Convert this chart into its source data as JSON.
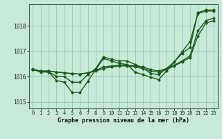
{
  "title": "Graphe pression niveau de la mer (hPa)",
  "background_color": "#c8e8d8",
  "grid_color": "#98c8b0",
  "line_color": "#1a5c1a",
  "marker_color": "#1a5c1a",
  "xlim": [
    -0.5,
    23.5
  ],
  "ylim": [
    1014.75,
    1018.85
  ],
  "yticks": [
    1015,
    1016,
    1017,
    1018
  ],
  "xticks": [
    0,
    1,
    2,
    3,
    4,
    5,
    6,
    7,
    8,
    9,
    10,
    11,
    12,
    13,
    14,
    15,
    16,
    17,
    18,
    19,
    20,
    21,
    22,
    23
  ],
  "series": [
    [
      1016.3,
      1016.2,
      1016.2,
      1015.85,
      1015.78,
      1015.38,
      1015.38,
      1015.82,
      1016.28,
      1016.72,
      1016.62,
      1016.52,
      1016.48,
      1016.18,
      1016.08,
      1015.98,
      1015.88,
      1016.22,
      1016.58,
      1016.98,
      1017.38,
      1018.48,
      1018.58,
      1018.58
    ],
    [
      1016.28,
      1016.18,
      1016.18,
      1016.02,
      1016.0,
      1015.78,
      1015.78,
      1016.08,
      1016.32,
      1016.78,
      1016.68,
      1016.62,
      1016.62,
      1016.48,
      1016.35,
      1016.12,
      1016.08,
      1016.32,
      1016.58,
      1016.92,
      1017.15,
      1018.52,
      1018.62,
      1018.62
    ],
    [
      1016.28,
      1016.22,
      1016.22,
      1016.18,
      1016.15,
      1016.12,
      1016.1,
      1016.15,
      1016.25,
      1016.38,
      1016.42,
      1016.45,
      1016.45,
      1016.42,
      1016.38,
      1016.28,
      1016.22,
      1016.32,
      1016.45,
      1016.62,
      1016.82,
      1017.8,
      1018.2,
      1018.3
    ],
    [
      1016.28,
      1016.22,
      1016.22,
      1016.18,
      1016.15,
      1016.12,
      1016.1,
      1016.15,
      1016.22,
      1016.32,
      1016.38,
      1016.42,
      1016.42,
      1016.38,
      1016.32,
      1016.22,
      1016.18,
      1016.28,
      1016.42,
      1016.58,
      1016.75,
      1017.6,
      1018.1,
      1018.2
    ]
  ],
  "linewidth": 1.0,
  "markersize": 2.5,
  "tick_fontsize": 5.0,
  "xlabel_fontsize": 6.0
}
